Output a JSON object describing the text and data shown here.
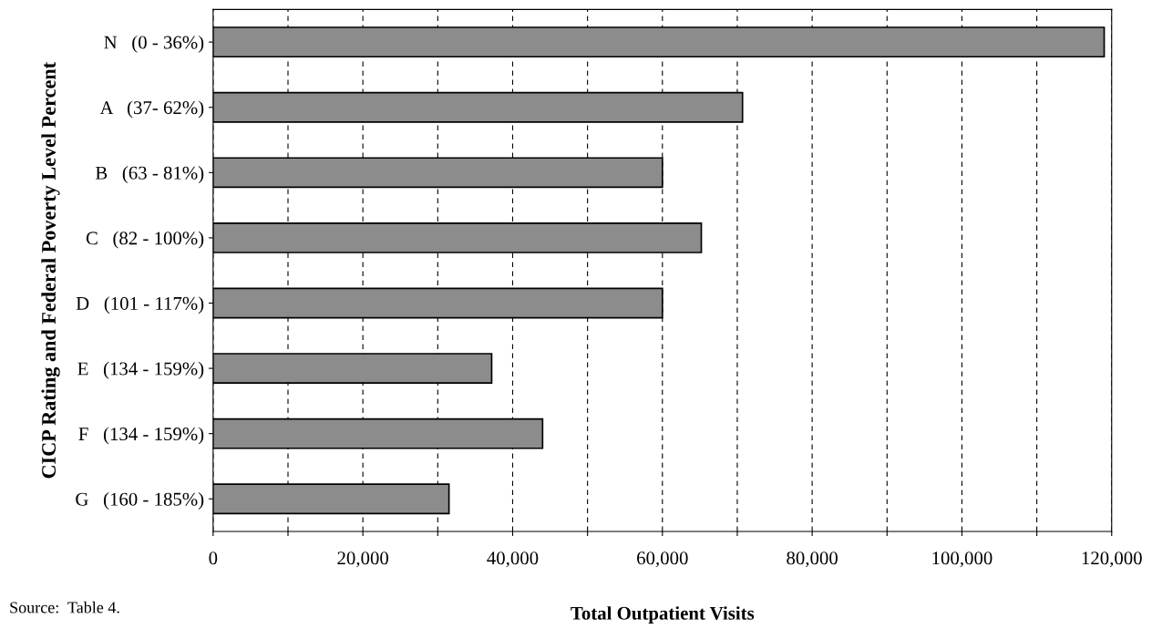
{
  "chart_data": {
    "type": "bar",
    "orientation": "horizontal",
    "xlabel": "Total Outpatient Visits",
    "ylabel": "CICP Rating and Federal Poverty Level Percent",
    "categories": [
      "N   (0 - 36%)",
      "A   (37- 62%)",
      "B   (63 - 81%)",
      "C   (82 - 100%)",
      "D   (101 - 117%)",
      "E   (134 - 159%)",
      "F   (134 - 159%)",
      "G   (160 - 185%)"
    ],
    "values": [
      119000,
      70700,
      60000,
      65200,
      60000,
      37200,
      44000,
      31500
    ],
    "color": "#8c8c8c",
    "xlim": [
      0,
      120000
    ],
    "xticks": [
      0,
      {
        "value": 10000,
        "label": null
      },
      {
        "value": 20000,
        "label": "20,000"
      },
      {
        "value": 30000,
        "label": null
      },
      {
        "value": 40000,
        "label": "40,000"
      },
      {
        "value": 50000,
        "label": null
      },
      {
        "value": 60000,
        "label": "60,000"
      },
      {
        "value": 70000,
        "label": null
      },
      {
        "value": 80000,
        "label": "80,000"
      },
      {
        "value": 90000,
        "label": null
      },
      {
        "value": 100000,
        "label": "100,000"
      },
      {
        "value": 110000,
        "label": null
      },
      {
        "value": 120000,
        "label": "120,000"
      }
    ],
    "grid": "x",
    "annotations": [
      "Source:  Table 4."
    ]
  }
}
